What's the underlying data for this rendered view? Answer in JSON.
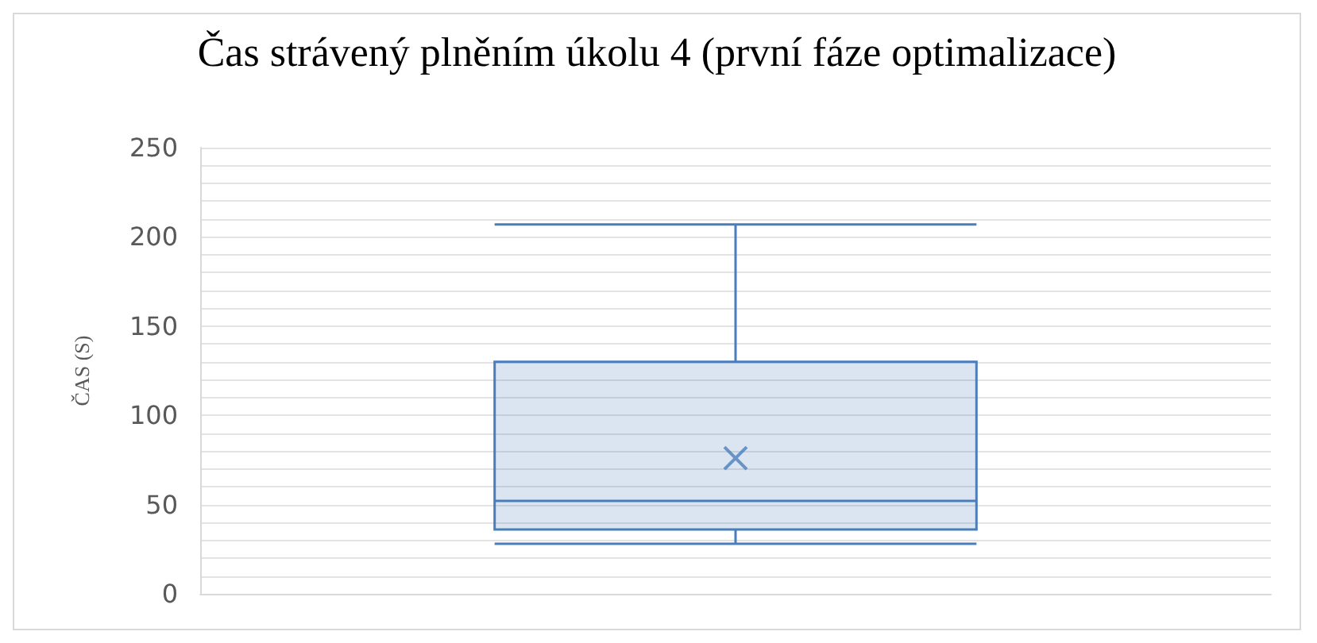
{
  "chart_data": {
    "type": "box",
    "title": "Čas strávený plněním úkolu 4 (první fáze optimalizace)",
    "ylabel": "ČAS (S)",
    "categories": [
      null
    ],
    "boxes": [
      {
        "low": 28,
        "q1": 36,
        "median": 52,
        "q3": 130,
        "high": 207,
        "mean": 76
      }
    ],
    "color": "#4a7ebb",
    "ylim": [
      0,
      250
    ],
    "yticks": [
      0,
      {
        "value": 10,
        "label": null
      },
      {
        "value": 20,
        "label": null
      },
      {
        "value": 30,
        "label": null
      },
      {
        "value": 40,
        "label": null
      },
      50,
      {
        "value": 60,
        "label": null
      },
      {
        "value": 70,
        "label": null
      },
      {
        "value": 80,
        "label": null
      },
      {
        "value": 90,
        "label": null
      },
      100,
      {
        "value": 110,
        "label": null
      },
      {
        "value": 120,
        "label": null
      },
      {
        "value": 130,
        "label": null
      },
      {
        "value": 140,
        "label": null
      },
      150,
      {
        "value": 160,
        "label": null
      },
      {
        "value": 170,
        "label": null
      },
      {
        "value": 180,
        "label": null
      },
      {
        "value": 190,
        "label": null
      },
      200,
      {
        "value": 210,
        "label": null
      },
      {
        "value": 220,
        "label": null
      },
      {
        "value": 230,
        "label": null
      },
      {
        "value": 240,
        "label": null
      },
      250
    ],
    "grid": true
  }
}
